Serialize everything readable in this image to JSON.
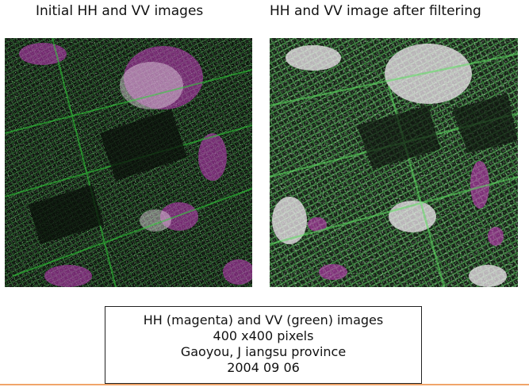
{
  "panels": {
    "left_title": "Initial HH and VV images",
    "right_title": "HH and VV image after filtering"
  },
  "caption": {
    "line1": "HH (magenta) and VV (green) images",
    "line2": "400 x400 pixels",
    "line3": "Gaoyou, J iangsu province",
    "line4": "2004 09 06"
  },
  "colors": {
    "hh_channel": "#d63ad0",
    "vv_channel": "#36d93a",
    "overlap": "#e8dde8",
    "background": "#0b120b",
    "footer_rule": "#f0a56a"
  }
}
